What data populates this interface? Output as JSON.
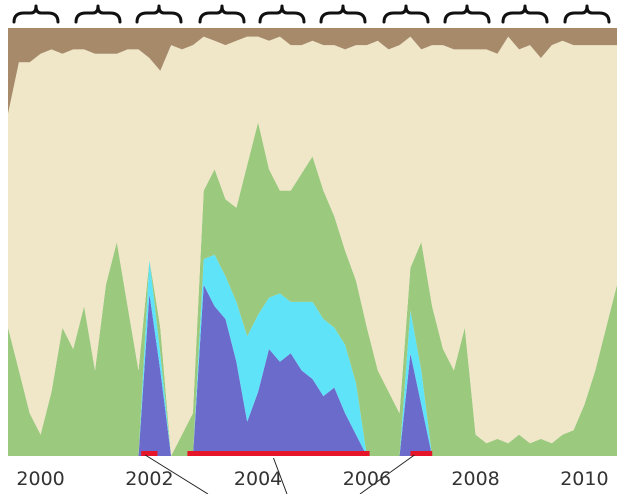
{
  "chart_data": {
    "type": "area",
    "title": "",
    "xlabel": "",
    "ylabel": "",
    "xlim": [
      1999.4,
      2010.6
    ],
    "ylim": [
      0,
      1
    ],
    "stacked": true,
    "normalized": true,
    "grid": false,
    "legend": "none",
    "x_ticks": [
      2000,
      2002,
      2004,
      2006,
      2008,
      2010
    ],
    "x": [
      1999.4,
      1999.6,
      1999.8,
      2000.0,
      2000.2,
      2000.4,
      2000.6,
      2000.8,
      2001.0,
      2001.2,
      2001.4,
      2001.6,
      2001.8,
      2002.0,
      2002.2,
      2002.4,
      2002.6,
      2002.8,
      2003.0,
      2003.2,
      2003.4,
      2003.6,
      2003.8,
      2004.0,
      2004.2,
      2004.4,
      2004.6,
      2004.8,
      2005.0,
      2005.2,
      2005.4,
      2005.6,
      2005.8,
      2006.0,
      2006.2,
      2006.4,
      2006.6,
      2006.8,
      2007.0,
      2007.2,
      2007.4,
      2007.6,
      2007.8,
      2008.0,
      2008.2,
      2008.4,
      2008.6,
      2008.8,
      2009.0,
      2009.2,
      2009.4,
      2009.6,
      2009.8,
      2010.0,
      2010.2,
      2010.4,
      2010.6
    ],
    "series": [
      {
        "color": "#6b6bcc",
        "values": [
          0.0,
          0.0,
          0.0,
          0.0,
          0.0,
          0.0,
          0.0,
          0.0,
          0.0,
          0.0,
          0.0,
          0.0,
          0.0,
          0.38,
          0.2,
          0.0,
          0.0,
          0.0,
          0.4,
          0.35,
          0.32,
          0.22,
          0.08,
          0.15,
          0.25,
          0.22,
          0.24,
          0.2,
          0.18,
          0.14,
          0.16,
          0.1,
          0.05,
          0.0,
          0.0,
          0.0,
          0.0,
          0.24,
          0.12,
          0.0,
          0.0,
          0.0,
          0.0,
          0.0,
          0.0,
          0.0,
          0.0,
          0.0,
          0.0,
          0.0,
          0.0,
          0.0,
          0.0,
          0.0,
          0.0,
          0.0,
          0.0
        ]
      },
      {
        "color": "#5ee3f8",
        "values": [
          0.0,
          0.0,
          0.0,
          0.0,
          0.0,
          0.0,
          0.0,
          0.0,
          0.0,
          0.0,
          0.0,
          0.0,
          0.0,
          0.08,
          0.04,
          0.0,
          0.0,
          0.0,
          0.06,
          0.12,
          0.1,
          0.14,
          0.2,
          0.18,
          0.12,
          0.16,
          0.12,
          0.16,
          0.18,
          0.18,
          0.14,
          0.16,
          0.12,
          0.0,
          0.0,
          0.0,
          0.0,
          0.1,
          0.08,
          0.0,
          0.0,
          0.0,
          0.0,
          0.0,
          0.0,
          0.0,
          0.0,
          0.0,
          0.0,
          0.0,
          0.0,
          0.0,
          0.0,
          0.0,
          0.0,
          0.0,
          0.0
        ]
      },
      {
        "color": "#9bc97e",
        "values": [
          0.3,
          0.2,
          0.1,
          0.05,
          0.15,
          0.3,
          0.25,
          0.35,
          0.2,
          0.4,
          0.5,
          0.35,
          0.2,
          0.0,
          0.06,
          0.0,
          0.05,
          0.1,
          0.16,
          0.2,
          0.18,
          0.22,
          0.4,
          0.45,
          0.3,
          0.24,
          0.26,
          0.3,
          0.34,
          0.3,
          0.26,
          0.22,
          0.24,
          0.3,
          0.2,
          0.15,
          0.1,
          0.1,
          0.3,
          0.35,
          0.25,
          0.2,
          0.3,
          0.05,
          0.03,
          0.04,
          0.03,
          0.05,
          0.03,
          0.04,
          0.03,
          0.05,
          0.06,
          0.12,
          0.2,
          0.3,
          0.4
        ]
      },
      {
        "color": "#f0e6c8",
        "values": [
          0.5,
          0.72,
          0.82,
          0.89,
          0.8,
          0.64,
          0.7,
          0.6,
          0.74,
          0.54,
          0.44,
          0.6,
          0.75,
          0.47,
          0.6,
          0.96,
          0.9,
          0.86,
          0.36,
          0.3,
          0.36,
          0.39,
          0.3,
          0.2,
          0.3,
          0.36,
          0.34,
          0.3,
          0.27,
          0.34,
          0.4,
          0.47,
          0.55,
          0.66,
          0.77,
          0.8,
          0.86,
          0.54,
          0.45,
          0.61,
          0.71,
          0.75,
          0.65,
          0.9,
          0.92,
          0.9,
          0.95,
          0.9,
          0.93,
          0.89,
          0.93,
          0.92,
          0.9,
          0.84,
          0.76,
          0.66,
          0.56
        ]
      },
      {
        "color": "#a68a6a",
        "values": [
          0.2,
          0.08,
          0.08,
          0.06,
          0.05,
          0.06,
          0.05,
          0.05,
          0.06,
          0.06,
          0.06,
          0.05,
          0.05,
          0.07,
          0.1,
          0.04,
          0.05,
          0.04,
          0.02,
          0.03,
          0.04,
          0.03,
          0.02,
          0.02,
          0.03,
          0.02,
          0.04,
          0.04,
          0.03,
          0.04,
          0.04,
          0.05,
          0.04,
          0.04,
          0.03,
          0.05,
          0.04,
          0.02,
          0.05,
          0.04,
          0.04,
          0.05,
          0.05,
          0.05,
          0.05,
          0.06,
          0.02,
          0.05,
          0.04,
          0.07,
          0.04,
          0.03,
          0.04,
          0.04,
          0.04,
          0.04,
          0.04
        ]
      }
    ],
    "annotations": {
      "highlight_ranges": [
        [
          2001.85,
          2002.15
        ],
        [
          2002.7,
          2006.05
        ],
        [
          2006.8,
          2007.2
        ]
      ],
      "highlight_color": "#e5162a"
    }
  }
}
